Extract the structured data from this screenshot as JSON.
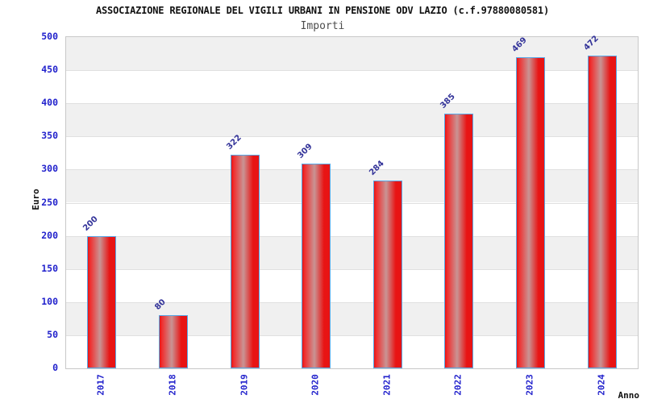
{
  "header": {
    "title": "ASSOCIAZIONE REGIONALE DEL VIGILI URBANI IN PENSIONE ODV LAZIO (c.f.97880080581)",
    "subtitle": "Importi"
  },
  "chart_data": {
    "type": "bar",
    "title": "ASSOCIAZIONE REGIONALE DEL VIGILI URBANI IN PENSIONE ODV LAZIO (c.f.97880080581)",
    "subtitle": "Importi",
    "categories": [
      "2017",
      "2018",
      "2019",
      "2020",
      "2021",
      "2022",
      "2023",
      "2024"
    ],
    "values": [
      200,
      80,
      322,
      309,
      284,
      385,
      469,
      472
    ],
    "xlabel": "Anno",
    "ylabel": "Euro",
    "ylim": [
      0,
      500
    ],
    "ytick_step": 50,
    "yticks": [
      0,
      50,
      100,
      150,
      200,
      250,
      300,
      350,
      400,
      450,
      500
    ],
    "grid": "horizontal-bands-alternating",
    "legend": "none",
    "value_labels_rotation_deg": -45,
    "xtick_rotation_deg": -90
  },
  "style": {
    "bar_fill": "#e81414",
    "bar_fill_bright": "#f03030",
    "bar_highlight": "#c99494",
    "bar_border": "#57a7e6",
    "tick_label_color": "#2222cc",
    "value_label_color": "#333399",
    "subtitle_color": "#4d4d4d",
    "band_color": "#f0f0f0",
    "grid_color": "#e0e0e0",
    "axis_line_color": "#c8c8c8"
  }
}
